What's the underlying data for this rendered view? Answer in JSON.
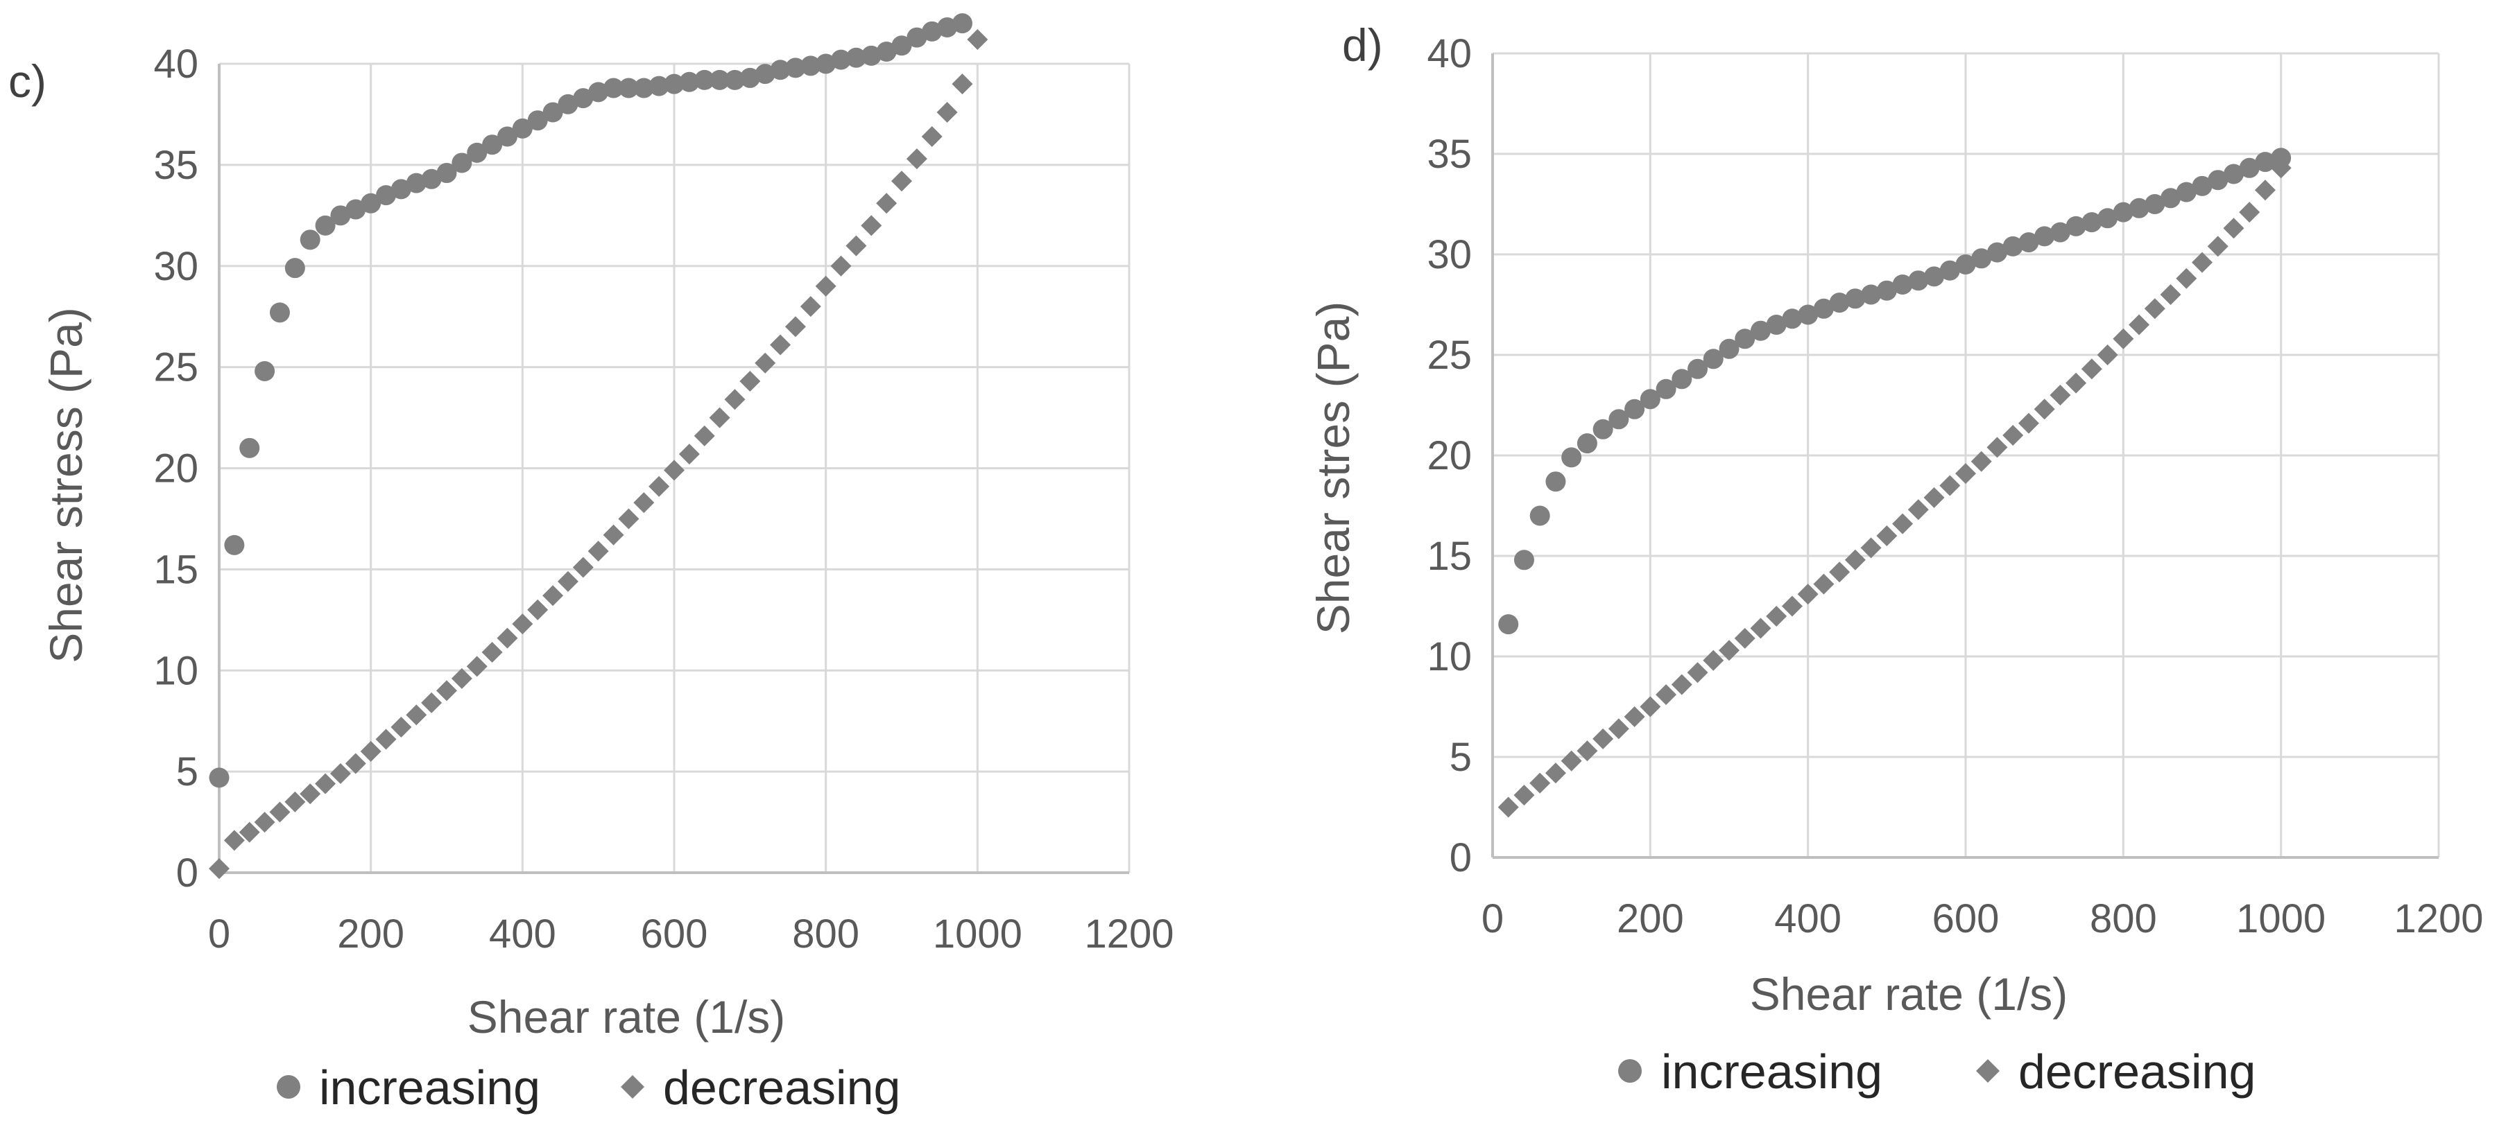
{
  "colors": {
    "marker": "#808080",
    "grid": "#d9d9d9",
    "axis": "#bfbfbf",
    "text": "#595959"
  },
  "chart_data": [
    {
      "panel": "c)",
      "type": "scatter",
      "xlabel": "Shear rate (1/s)",
      "ylabel": "Shear stress  (Pa)",
      "xlim": [
        0,
        1200
      ],
      "ylim": [
        0,
        40
      ],
      "xticks": [
        0,
        200,
        400,
        600,
        800,
        1000,
        1200
      ],
      "yticks": [
        0,
        5,
        10,
        15,
        20,
        25,
        30,
        35,
        40
      ],
      "legend": "bottom",
      "series": [
        {
          "name": "increasing",
          "marker": "circle",
          "x": [
            0,
            20,
            40,
            60,
            80,
            100,
            120,
            140,
            160,
            180,
            200,
            220,
            240,
            260,
            280,
            300,
            320,
            340,
            360,
            380,
            400,
            420,
            440,
            460,
            480,
            500,
            520,
            540,
            560,
            580,
            600,
            620,
            640,
            660,
            680,
            700,
            720,
            740,
            760,
            780,
            800,
            820,
            840,
            860,
            880,
            900,
            920,
            940,
            960,
            980
          ],
          "y": [
            4.7,
            16.2,
            21.0,
            24.8,
            27.7,
            29.9,
            31.3,
            32.0,
            32.5,
            32.8,
            33.1,
            33.5,
            33.8,
            34.1,
            34.3,
            34.6,
            35.1,
            35.6,
            36.0,
            36.4,
            36.8,
            37.2,
            37.6,
            38.0,
            38.3,
            38.6,
            38.8,
            38.8,
            38.8,
            38.9,
            39.0,
            39.1,
            39.2,
            39.2,
            39.2,
            39.3,
            39.5,
            39.7,
            39.8,
            39.9,
            40.0,
            40.2,
            40.3,
            40.4,
            40.6,
            40.9,
            41.3,
            41.6,
            41.8,
            42.0
          ]
        },
        {
          "name": "decreasing",
          "marker": "diamond",
          "x": [
            0,
            20,
            40,
            60,
            80,
            100,
            120,
            140,
            160,
            180,
            200,
            220,
            240,
            260,
            280,
            300,
            320,
            340,
            360,
            380,
            400,
            420,
            440,
            460,
            480,
            500,
            520,
            540,
            560,
            580,
            600,
            620,
            640,
            660,
            680,
            700,
            720,
            740,
            760,
            780,
            800,
            820,
            840,
            860,
            880,
            900,
            920,
            940,
            960,
            980,
            1000
          ],
          "y": [
            0.2,
            1.6,
            2.0,
            2.5,
            3.0,
            3.5,
            3.9,
            4.4,
            4.9,
            5.4,
            6.0,
            6.6,
            7.2,
            7.8,
            8.4,
            9.0,
            9.6,
            10.2,
            10.9,
            11.6,
            12.3,
            13.0,
            13.7,
            14.4,
            15.1,
            15.9,
            16.7,
            17.5,
            18.3,
            19.1,
            19.9,
            20.7,
            21.6,
            22.5,
            23.4,
            24.3,
            25.2,
            26.1,
            27.0,
            28.0,
            29.0,
            30.0,
            31.0,
            32.0,
            33.1,
            34.2,
            35.3,
            36.4,
            37.6,
            39.0,
            41.2
          ]
        }
      ]
    },
    {
      "panel": "d)",
      "type": "scatter",
      "xlabel": "Shear rate (1/s)",
      "ylabel": "Shear stres  (Pa)",
      "xlim": [
        0,
        1200
      ],
      "ylim": [
        0,
        40
      ],
      "xticks": [
        0,
        200,
        400,
        600,
        800,
        1000,
        1200
      ],
      "yticks": [
        0,
        5,
        10,
        15,
        20,
        25,
        30,
        35,
        40
      ],
      "legend": "bottom",
      "series": [
        {
          "name": "increasing",
          "marker": "circle",
          "x": [
            20,
            40,
            60,
            80,
            100,
            120,
            140,
            160,
            180,
            200,
            220,
            240,
            260,
            280,
            300,
            320,
            340,
            360,
            380,
            400,
            420,
            440,
            460,
            480,
            500,
            520,
            540,
            560,
            580,
            600,
            620,
            640,
            660,
            680,
            700,
            720,
            740,
            760,
            780,
            800,
            820,
            840,
            860,
            880,
            900,
            920,
            940,
            960,
            980,
            1000
          ],
          "y": [
            11.6,
            14.8,
            17.0,
            18.7,
            19.9,
            20.6,
            21.3,
            21.8,
            22.3,
            22.8,
            23.3,
            23.8,
            24.3,
            24.8,
            25.3,
            25.8,
            26.2,
            26.5,
            26.8,
            27.0,
            27.3,
            27.6,
            27.8,
            28.0,
            28.2,
            28.5,
            28.7,
            28.9,
            29.2,
            29.5,
            29.8,
            30.1,
            30.4,
            30.6,
            30.9,
            31.1,
            31.4,
            31.6,
            31.8,
            32.1,
            32.3,
            32.5,
            32.8,
            33.1,
            33.4,
            33.7,
            34.0,
            34.3,
            34.6,
            34.8
          ]
        },
        {
          "name": "decreasing",
          "marker": "diamond",
          "x": [
            20,
            40,
            60,
            80,
            100,
            120,
            140,
            160,
            180,
            200,
            220,
            240,
            260,
            280,
            300,
            320,
            340,
            360,
            380,
            400,
            420,
            440,
            460,
            480,
            500,
            520,
            540,
            560,
            580,
            600,
            620,
            640,
            660,
            680,
            700,
            720,
            740,
            760,
            780,
            800,
            820,
            840,
            860,
            880,
            900,
            920,
            940,
            960,
            980,
            1000
          ],
          "y": [
            2.5,
            3.1,
            3.7,
            4.2,
            4.8,
            5.3,
            5.9,
            6.4,
            7.0,
            7.5,
            8.1,
            8.6,
            9.2,
            9.8,
            10.3,
            10.9,
            11.4,
            12.0,
            12.5,
            13.1,
            13.6,
            14.2,
            14.8,
            15.4,
            16.0,
            16.6,
            17.3,
            17.9,
            18.5,
            19.1,
            19.7,
            20.4,
            21.0,
            21.6,
            22.3,
            23.0,
            23.6,
            24.3,
            25.0,
            25.8,
            26.5,
            27.3,
            28.0,
            28.8,
            29.6,
            30.4,
            31.3,
            32.1,
            33.2,
            34.3
          ]
        }
      ]
    }
  ]
}
